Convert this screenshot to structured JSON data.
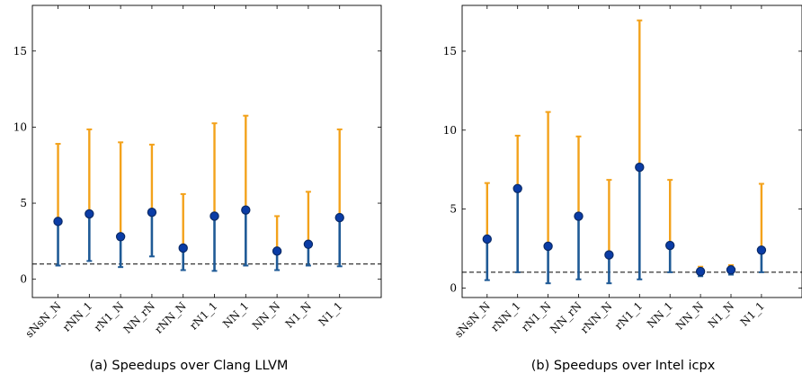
{
  "colors": {
    "min_bar": "#1f5a96",
    "max_bar": "#f3a21b",
    "marker_fill": "#0a3ca6",
    "marker_edge": "#0a2a66",
    "baseline": "#000000"
  },
  "chart_data": [
    {
      "type": "scatter",
      "caption": "(a) Speedups over Clang LLVM",
      "categories": [
        "sNsN_N",
        "rNN_1",
        "rN1_N",
        "NN_rN",
        "rNN_N",
        "rN1_1",
        "NN_1",
        "NN_N",
        "N1_N",
        "N1_1"
      ],
      "mean": [
        3.8,
        4.3,
        2.8,
        4.4,
        2.05,
        4.15,
        4.55,
        1.85,
        2.3,
        4.05
      ],
      "min": [
        0.9,
        1.2,
        0.8,
        1.5,
        0.6,
        0.55,
        0.9,
        0.6,
        0.9,
        0.85
      ],
      "max": [
        8.9,
        9.85,
        9.0,
        8.85,
        5.6,
        10.25,
        10.75,
        4.15,
        5.75,
        9.85
      ],
      "baseline": 1,
      "ylim": [
        -1.2,
        18
      ],
      "yticks": [
        0,
        5,
        10,
        15
      ],
      "grid": false,
      "xlabel": "",
      "ylabel": ""
    },
    {
      "type": "scatter",
      "caption": "(b) Speedups over Intel icpx",
      "categories": [
        "sNsN_N",
        "rNN_1",
        "rN1_N",
        "NN_rN",
        "rNN_N",
        "rN1_1",
        "NN_1",
        "NN_N",
        "N1_N",
        "N1_1"
      ],
      "mean": [
        3.1,
        6.3,
        2.65,
        4.55,
        2.1,
        7.65,
        2.7,
        1.05,
        1.15,
        2.4
      ],
      "min": [
        0.5,
        1.0,
        0.3,
        0.55,
        0.3,
        0.55,
        1.0,
        0.75,
        0.85,
        1.0
      ],
      "max": [
        6.65,
        9.65,
        11.15,
        9.6,
        6.85,
        16.95,
        6.85,
        1.35,
        1.45,
        6.6
      ],
      "baseline": 1,
      "ylim": [
        -0.6,
        17.9
      ],
      "yticks": [
        0,
        5,
        10,
        15
      ],
      "grid": false,
      "xlabel": "",
      "ylabel": ""
    }
  ]
}
